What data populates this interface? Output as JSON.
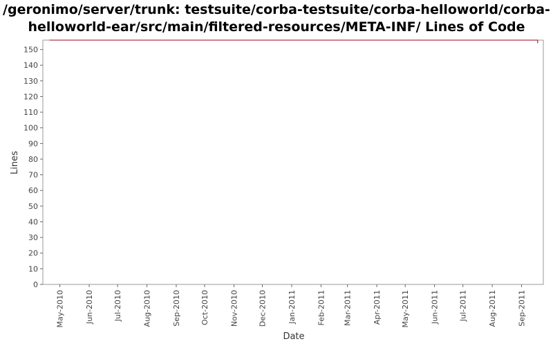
{
  "title_line1": "/geronimo/server/trunk: testsuite/corba-testsuite/corba-helloworld/corba-",
  "title_line2": "helloworld-ear/src/main/filtered-resources/META-INF/ Lines of Code",
  "chart_data": {
    "type": "line",
    "title": "/geronimo/server/trunk: testsuite/corba-testsuite/corba-helloworld/corba-helloworld-ear/src/main/filtered-resources/META-INF/ Lines of Code",
    "xlabel": "Date",
    "ylabel": "Lines",
    "ylim": [
      0,
      156
    ],
    "yticks": [
      0,
      10,
      20,
      30,
      40,
      50,
      60,
      70,
      80,
      90,
      100,
      110,
      120,
      130,
      140,
      150
    ],
    "xlim": [
      "2010-04-13",
      "2011-09-24"
    ],
    "xticks": [
      {
        "label": "May-2010",
        "date": "2010-05-01"
      },
      {
        "label": "Jun-2010",
        "date": "2010-06-01"
      },
      {
        "label": "Jul-2010",
        "date": "2010-07-01"
      },
      {
        "label": "Aug-2010",
        "date": "2010-08-01"
      },
      {
        "label": "Sep-2010",
        "date": "2010-09-01"
      },
      {
        "label": "Oct-2010",
        "date": "2010-10-01"
      },
      {
        "label": "Nov-2010",
        "date": "2010-11-01"
      },
      {
        "label": "Dec-2010",
        "date": "2010-12-01"
      },
      {
        "label": "Jan-2011",
        "date": "2011-01-01"
      },
      {
        "label": "Feb-2011",
        "date": "2011-02-01"
      },
      {
        "label": "Mar-2011",
        "date": "2011-03-01"
      },
      {
        "label": "Apr-2011",
        "date": "2011-04-01"
      },
      {
        "label": "May-2011",
        "date": "2011-05-01"
      },
      {
        "label": "Jun-2011",
        "date": "2011-06-01"
      },
      {
        "label": "Jul-2011",
        "date": "2011-07-01"
      },
      {
        "label": "Aug-2011",
        "date": "2011-08-01"
      },
      {
        "label": "Sep-2011",
        "date": "2011-09-01"
      }
    ],
    "series": [
      {
        "color": "#a0001e",
        "points": [
          {
            "x": "2010-04-20",
            "y": 156
          },
          {
            "x": "2011-09-18",
            "y": 156
          },
          {
            "x": "2011-09-18",
            "y": 154
          }
        ]
      }
    ],
    "grid": false,
    "legend": "none"
  }
}
